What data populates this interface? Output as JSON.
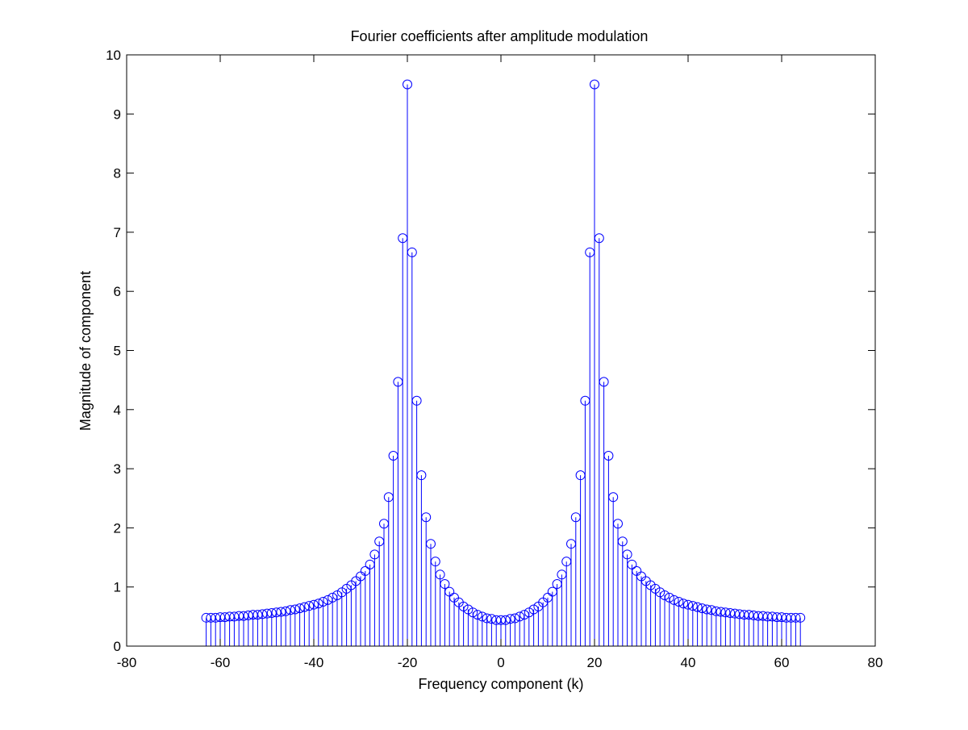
{
  "chart_data": {
    "type": "stem",
    "title": "Fourier coefficients after amplitude modulation",
    "xlabel": "Frequency component (k)",
    "ylabel": "Magnitude of component",
    "xlim": [
      -80,
      80
    ],
    "ylim": [
      0,
      10
    ],
    "xticks": [
      -80,
      -60,
      -40,
      -20,
      0,
      20,
      40,
      60,
      80
    ],
    "yticks": [
      0,
      1,
      2,
      3,
      4,
      5,
      6,
      7,
      8,
      9,
      10
    ],
    "grid": false,
    "legend": "none",
    "colors": {
      "stem": "#0000ff",
      "axes": "#000000",
      "background": "#ffffff"
    },
    "series": [
      {
        "x": [
          -63,
          -62,
          -61,
          -60,
          -59,
          -58,
          -57,
          -56,
          -55,
          -54,
          -53,
          -52,
          -51,
          -50,
          -49,
          -48,
          -47,
          -46,
          -45,
          -44,
          -43,
          -42,
          -41,
          -40,
          -39,
          -38,
          -37,
          -36,
          -35,
          -34,
          -33,
          -32,
          -31,
          -30,
          -29,
          -28,
          -27,
          -26,
          -25,
          -24,
          -23,
          -22,
          -21,
          -20,
          -19,
          -18,
          -17,
          -16,
          -15,
          -14,
          -13,
          -12,
          -11,
          -10,
          -9,
          -8,
          -7,
          -6,
          -5,
          -4,
          -3,
          -2,
          -1,
          0,
          1,
          2,
          3,
          4,
          5,
          6,
          7,
          8,
          9,
          10,
          11,
          12,
          13,
          14,
          15,
          16,
          17,
          18,
          19,
          20,
          21,
          22,
          23,
          24,
          25,
          26,
          27,
          28,
          29,
          30,
          31,
          32,
          33,
          34,
          35,
          36,
          37,
          38,
          39,
          40,
          41,
          42,
          43,
          44,
          45,
          46,
          47,
          48,
          49,
          50,
          51,
          52,
          53,
          54,
          55,
          56,
          57,
          58,
          59,
          60,
          61,
          62,
          63,
          64
        ],
        "values": [
          0.48,
          0.48,
          0.48,
          0.49,
          0.49,
          0.5,
          0.5,
          0.51,
          0.51,
          0.52,
          0.53,
          0.53,
          0.54,
          0.55,
          0.56,
          0.57,
          0.58,
          0.59,
          0.61,
          0.62,
          0.64,
          0.66,
          0.68,
          0.7,
          0.72,
          0.75,
          0.78,
          0.82,
          0.86,
          0.91,
          0.97,
          1.03,
          1.1,
          1.18,
          1.27,
          1.38,
          1.55,
          1.77,
          2.07,
          2.52,
          3.22,
          4.47,
          6.9,
          9.5,
          6.66,
          4.15,
          2.89,
          2.18,
          1.73,
          1.43,
          1.21,
          1.05,
          0.92,
          0.82,
          0.74,
          0.67,
          0.62,
          0.57,
          0.53,
          0.5,
          0.47,
          0.46,
          0.44,
          0.44,
          0.44,
          0.46,
          0.47,
          0.5,
          0.53,
          0.57,
          0.62,
          0.67,
          0.74,
          0.82,
          0.92,
          1.05,
          1.21,
          1.43,
          1.73,
          2.18,
          2.89,
          4.15,
          6.66,
          9.5,
          6.9,
          4.47,
          3.22,
          2.52,
          2.07,
          1.77,
          1.55,
          1.38,
          1.27,
          1.18,
          1.1,
          1.03,
          0.97,
          0.91,
          0.86,
          0.82,
          0.78,
          0.75,
          0.72,
          0.7,
          0.68,
          0.66,
          0.64,
          0.62,
          0.61,
          0.59,
          0.58,
          0.57,
          0.56,
          0.55,
          0.54,
          0.53,
          0.53,
          0.52,
          0.51,
          0.51,
          0.5,
          0.5,
          0.49,
          0.49,
          0.48,
          0.48,
          0.48,
          0.48
        ]
      }
    ]
  }
}
